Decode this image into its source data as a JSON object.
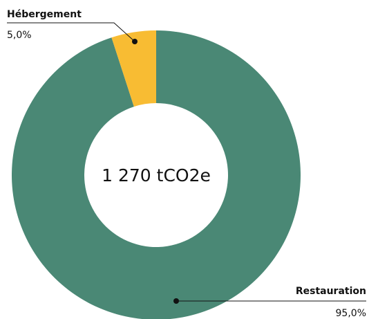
{
  "chart_data": {
    "type": "donut",
    "center_label": "1 270 tCO2e",
    "categories": [
      "Restauration",
      "Hébergement"
    ],
    "values": [
      95.0,
      5.0
    ],
    "value_labels": [
      "95,0%",
      "5,0%"
    ],
    "colors": [
      "#4a8875",
      "#f8bc33"
    ]
  }
}
